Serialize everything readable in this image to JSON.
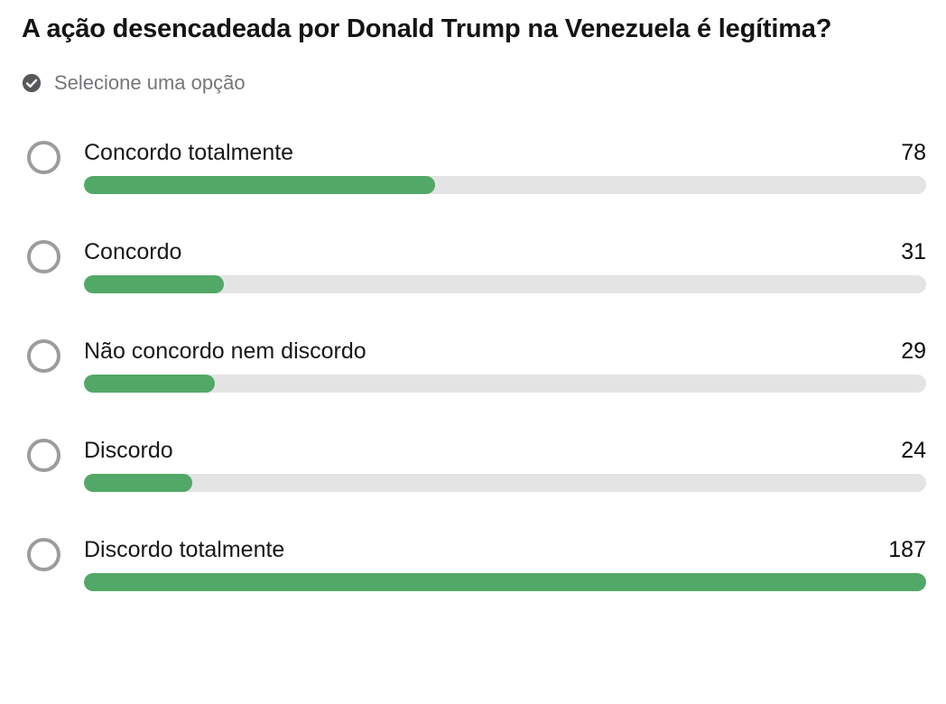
{
  "poll": {
    "title": "A ação desencadeada por Donald Trump na Venezuela é legítima?",
    "instruction": "Selecione uma opção",
    "options": [
      {
        "label": "Concordo totalmente",
        "votes": 78
      },
      {
        "label": "Concordo",
        "votes": 31
      },
      {
        "label": "Não concordo nem discordo",
        "votes": 29
      },
      {
        "label": "Discordo",
        "votes": 24
      },
      {
        "label": "Discordo totalmente",
        "votes": 187
      }
    ]
  },
  "colors": {
    "bar_fill": "#52a866",
    "bar_track": "#e4e4e4",
    "radio_border": "#9c9c9c",
    "title": "#141416",
    "muted_text": "#76767a",
    "check_icon": "#57575b"
  }
}
